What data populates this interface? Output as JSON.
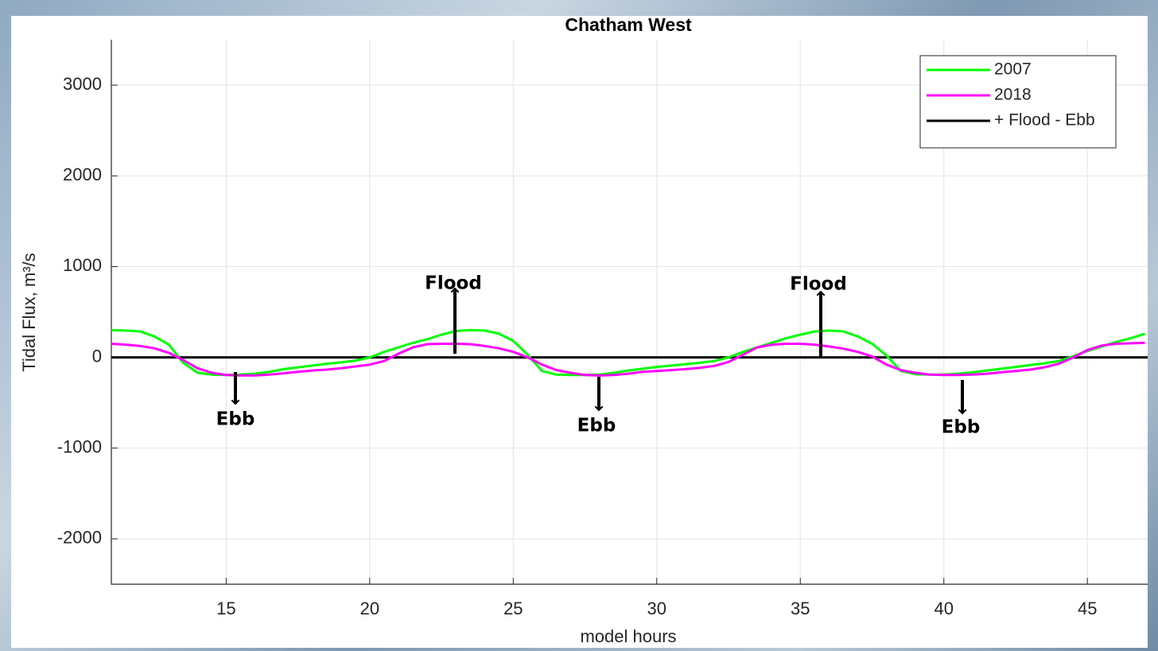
{
  "chart_data": {
    "type": "line",
    "title": "Chatham West",
    "x_label": "model hours",
    "y_label": "Tidal Flux, m³/s",
    "x": [
      11,
      11.5,
      12,
      12.5,
      13,
      13.5,
      14,
      14.5,
      15,
      15.5,
      16,
      16.5,
      17,
      17.5,
      18,
      18.5,
      19,
      19.5,
      20,
      20.5,
      21,
      21.5,
      22,
      22.5,
      23,
      23.5,
      24,
      24.5,
      25,
      25.5,
      26,
      26.5,
      27,
      27.5,
      28,
      28.5,
      29,
      29.5,
      30,
      30.5,
      31,
      31.5,
      32,
      32.5,
      33,
      33.5,
      34,
      34.5,
      35,
      35.5,
      36,
      36.5,
      37,
      37.5,
      38,
      38.5,
      39,
      39.5,
      40,
      40.5,
      41,
      41.5,
      42,
      42.5,
      43,
      43.5,
      44,
      44.5,
      45,
      45.5,
      46,
      46.5,
      47
    ],
    "series": [
      {
        "name": "2007",
        "color": "#00ff00",
        "values": [
          300,
          295,
          285,
          230,
          140,
          -60,
          -170,
          -190,
          -195,
          -190,
          -180,
          -160,
          -130,
          -110,
          -90,
          -70,
          -55,
          -35,
          0,
          60,
          110,
          160,
          200,
          250,
          290,
          300,
          295,
          260,
          180,
          30,
          -150,
          -190,
          -195,
          -195,
          -190,
          -170,
          -145,
          -125,
          -105,
          -90,
          -75,
          -60,
          -40,
          0,
          60,
          110,
          160,
          210,
          250,
          285,
          295,
          285,
          230,
          150,
          20,
          -150,
          -185,
          -190,
          -190,
          -180,
          -165,
          -145,
          -125,
          -105,
          -85,
          -65,
          -40,
          10,
          70,
          120,
          170,
          210,
          260
        ]
      },
      {
        "name": "2018",
        "color": "#ff00ff",
        "values": [
          150,
          140,
          125,
          100,
          50,
          -30,
          -120,
          -170,
          -195,
          -200,
          -200,
          -190,
          -175,
          -160,
          -145,
          -135,
          -120,
          -100,
          -80,
          -40,
          40,
          110,
          145,
          150,
          150,
          145,
          125,
          100,
          60,
          0,
          -80,
          -140,
          -170,
          -195,
          -200,
          -195,
          -180,
          -160,
          -150,
          -140,
          -130,
          -115,
          -95,
          -50,
          30,
          110,
          140,
          150,
          150,
          140,
          120,
          95,
          60,
          10,
          -80,
          -140,
          -170,
          -190,
          -195,
          -195,
          -190,
          -180,
          -165,
          -150,
          -135,
          -110,
          -70,
          0,
          80,
          130,
          150,
          155,
          160
        ]
      }
    ],
    "reference_line": {
      "name": "+ Flood - Ebb",
      "value": 0,
      "color": "#000000"
    },
    "annotations": [
      "Flood",
      "Flood",
      "Ebb",
      "Ebb",
      "Ebb"
    ],
    "xlim": [
      11,
      47.1
    ],
    "ylim": [
      -2500,
      3500
    ],
    "xticks": [
      15,
      20,
      25,
      30,
      35,
      40,
      45
    ],
    "yticks": [
      -2000,
      -1000,
      0,
      1000,
      2000,
      3000
    ],
    "grid": true,
    "legend": "upper right"
  }
}
